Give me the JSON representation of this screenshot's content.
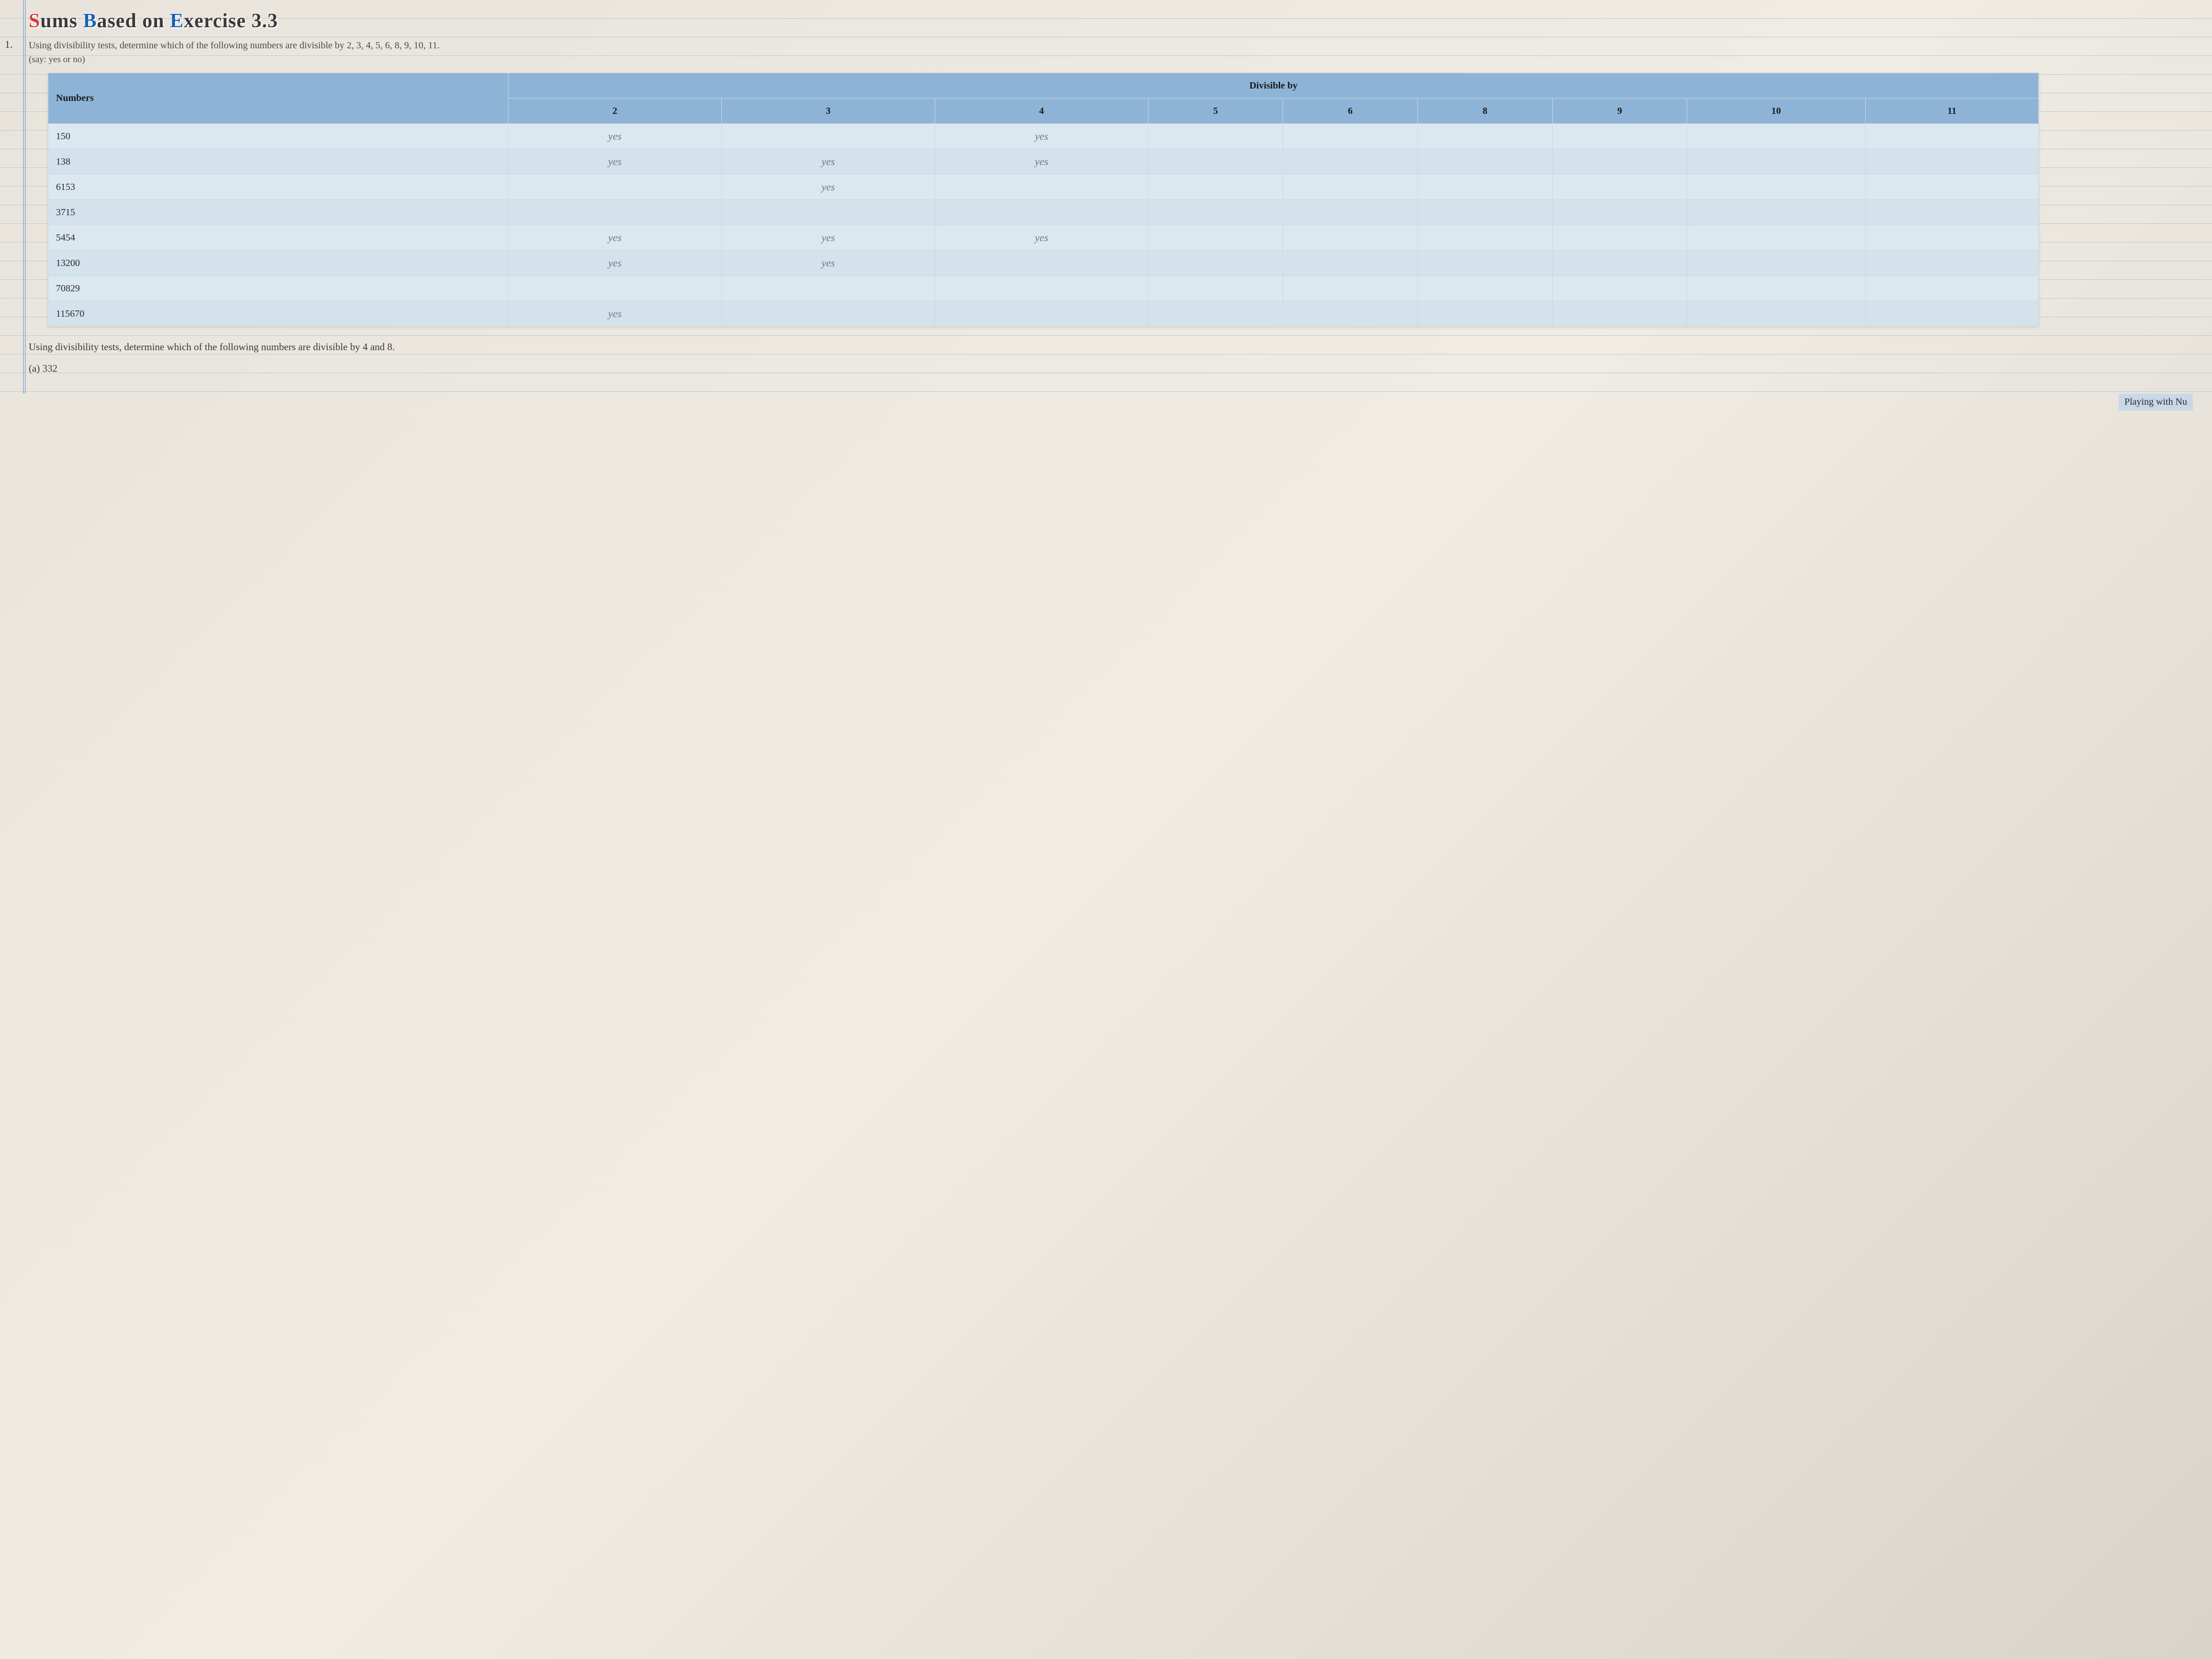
{
  "heading": {
    "prefix_s": "S",
    "prefix_rest1": "ums ",
    "b": "B",
    "rest2": "ased on ",
    "e": "E",
    "rest3": "xercise 3.3"
  },
  "q1": {
    "number": "1.",
    "text": "Using divisibility tests, determine which of the following numbers are divisible by 2, 3, 4, 5, 6, 8, 9, 10, 11.",
    "sub": "(say: yes or no)"
  },
  "table": {
    "head_numbers": "Numbers",
    "head_divisible": "Divisible by",
    "divisors": [
      "2",
      "3",
      "4",
      "5",
      "6",
      "8",
      "9",
      "10",
      "11"
    ],
    "rows": [
      {
        "number": "150",
        "answers": [
          "yes",
          "",
          "yes",
          "",
          "",
          "",
          "",
          "",
          ""
        ]
      },
      {
        "number": "138",
        "answers": [
          "yes",
          "yes",
          "yes",
          "",
          "",
          "",
          "",
          "",
          ""
        ]
      },
      {
        "number": "6153",
        "answers": [
          "",
          "yes",
          "",
          "",
          "",
          "",
          "",
          "",
          ""
        ]
      },
      {
        "number": "3715",
        "answers": [
          "",
          "",
          "",
          "",
          "",
          "",
          "",
          "",
          ""
        ]
      },
      {
        "number": "5454",
        "answers": [
          "yes",
          "yes",
          "yes",
          "",
          "",
          "",
          "",
          "",
          ""
        ]
      },
      {
        "number": "13200",
        "answers": [
          "yes",
          "yes",
          "",
          "",
          "",
          "",
          "",
          "",
          ""
        ]
      },
      {
        "number": "70829",
        "answers": [
          "",
          "",
          "",
          "",
          "",
          "",
          "",
          "",
          ""
        ]
      },
      {
        "number": "115670",
        "answers": [
          "yes",
          "",
          "",
          "",
          "",
          "",
          "",
          "",
          ""
        ]
      }
    ]
  },
  "q2": {
    "text": "Using divisibility tests, determine which of the following numbers are divisible by 4 and 8.",
    "opt_a": "(a)  332"
  },
  "footer": "Playing with Nu"
}
